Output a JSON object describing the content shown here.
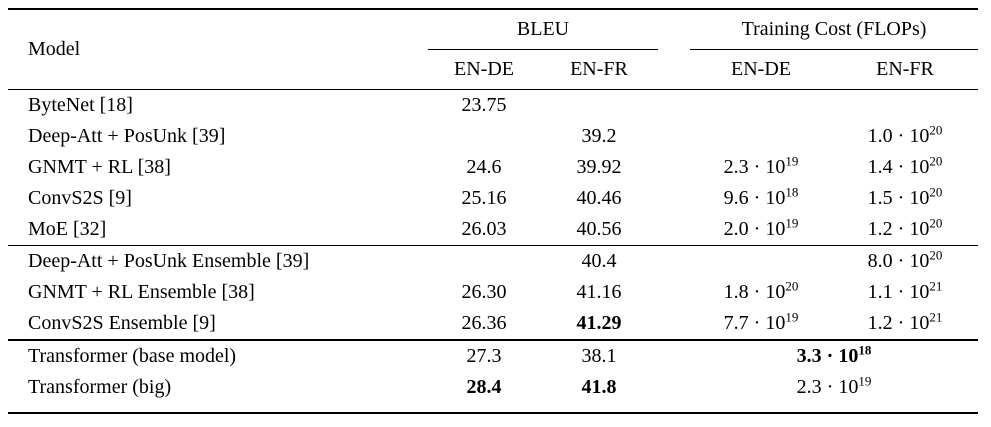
{
  "colors": {
    "background": "#ffffff",
    "text": "#000000",
    "rule": "#000000"
  },
  "table": {
    "header": {
      "model_label": "Model",
      "bleu_group": "BLEU",
      "cost_group": "Training Cost (FLOPs)",
      "bleu_en_de": "EN-DE",
      "bleu_en_fr": "EN-FR",
      "cost_en_de": "EN-DE",
      "cost_en_fr": "EN-FR"
    },
    "rows": [
      {
        "model": "ByteNet [18]",
        "bleu_de": "23.75"
      },
      {
        "model": "Deep-Att + PosUnk [39]",
        "bleu_fr": "39.2",
        "cost_fr": {
          "m": "1.0 · 10",
          "e": "20"
        }
      },
      {
        "model": "GNMT + RL [38]",
        "bleu_de": "24.6",
        "bleu_fr": "39.92",
        "cost_de": {
          "m": "2.3 · 10",
          "e": "19"
        },
        "cost_fr": {
          "m": "1.4 · 10",
          "e": "20"
        }
      },
      {
        "model": "ConvS2S [9]",
        "bleu_de": "25.16",
        "bleu_fr": "40.46",
        "cost_de": {
          "m": "9.6 · 10",
          "e": "18"
        },
        "cost_fr": {
          "m": "1.5 · 10",
          "e": "20"
        }
      },
      {
        "model": "MoE [32]",
        "bleu_de": "26.03",
        "bleu_fr": "40.56",
        "cost_de": {
          "m": "2.0 · 10",
          "e": "19"
        },
        "cost_fr": {
          "m": "1.2 · 10",
          "e": "20"
        }
      },
      {
        "model": "Deep-Att + PosUnk Ensemble [39]",
        "bleu_fr": "40.4",
        "cost_fr": {
          "m": "8.0 · 10",
          "e": "20"
        }
      },
      {
        "model": "GNMT + RL Ensemble [38]",
        "bleu_de": "26.30",
        "bleu_fr": "41.16",
        "cost_de": {
          "m": "1.8 · 10",
          "e": "20"
        },
        "cost_fr": {
          "m": "1.1 · 10",
          "e": "21"
        }
      },
      {
        "model": "ConvS2S Ensemble [9]",
        "bleu_de": "26.36",
        "bleu_fr": "41.29",
        "cost_de": {
          "m": "7.7 · 10",
          "e": "19"
        },
        "cost_fr": {
          "m": "1.2 · 10",
          "e": "21"
        }
      },
      {
        "model": "Transformer (base model)",
        "bleu_de": "27.3",
        "bleu_fr": "38.1",
        "cost": {
          "m": "3.3 · 10",
          "e": "18"
        }
      },
      {
        "model": "Transformer (big)",
        "bleu_de": "28.4",
        "bleu_fr": "41.8",
        "cost": {
          "m": "2.3 · 10",
          "e": "19"
        }
      }
    ]
  }
}
